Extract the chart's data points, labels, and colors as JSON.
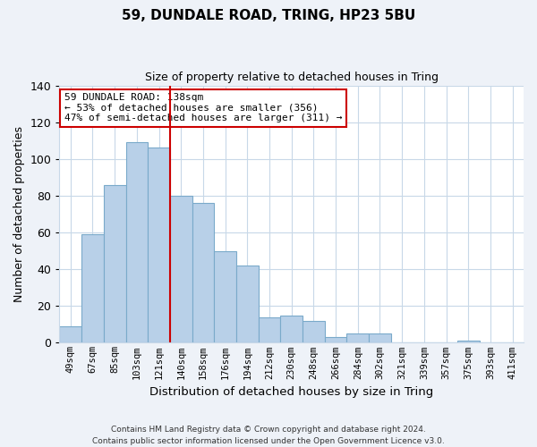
{
  "title1": "59, DUNDALE ROAD, TRING, HP23 5BU",
  "title2": "Size of property relative to detached houses in Tring",
  "xlabel": "Distribution of detached houses by size in Tring",
  "ylabel": "Number of detached properties",
  "bar_labels": [
    "49sqm",
    "67sqm",
    "85sqm",
    "103sqm",
    "121sqm",
    "140sqm",
    "158sqm",
    "176sqm",
    "194sqm",
    "212sqm",
    "230sqm",
    "248sqm",
    "266sqm",
    "284sqm",
    "302sqm",
    "321sqm",
    "339sqm",
    "357sqm",
    "375sqm",
    "393sqm",
    "411sqm"
  ],
  "bar_values": [
    9,
    59,
    86,
    109,
    106,
    80,
    76,
    50,
    42,
    14,
    15,
    12,
    3,
    5,
    5,
    0,
    0,
    0,
    1,
    0,
    0
  ],
  "bar_color": "#b8d0e8",
  "bar_edge_color": "#7aaaca",
  "vline_color": "#cc0000",
  "annotation_lines": [
    "59 DUNDALE ROAD: 138sqm",
    "← 53% of detached houses are smaller (356)",
    "47% of semi-detached houses are larger (311) →"
  ],
  "annotation_box_color": "#ffffff",
  "annotation_box_edge": "#cc0000",
  "ylim": [
    0,
    140
  ],
  "yticks": [
    0,
    20,
    40,
    60,
    80,
    100,
    120,
    140
  ],
  "footer_line1": "Contains HM Land Registry data © Crown copyright and database right 2024.",
  "footer_line2": "Contains public sector information licensed under the Open Government Licence v3.0.",
  "bg_color": "#eef2f8",
  "plot_bg_color": "#ffffff",
  "grid_color": "#c8d8e8"
}
